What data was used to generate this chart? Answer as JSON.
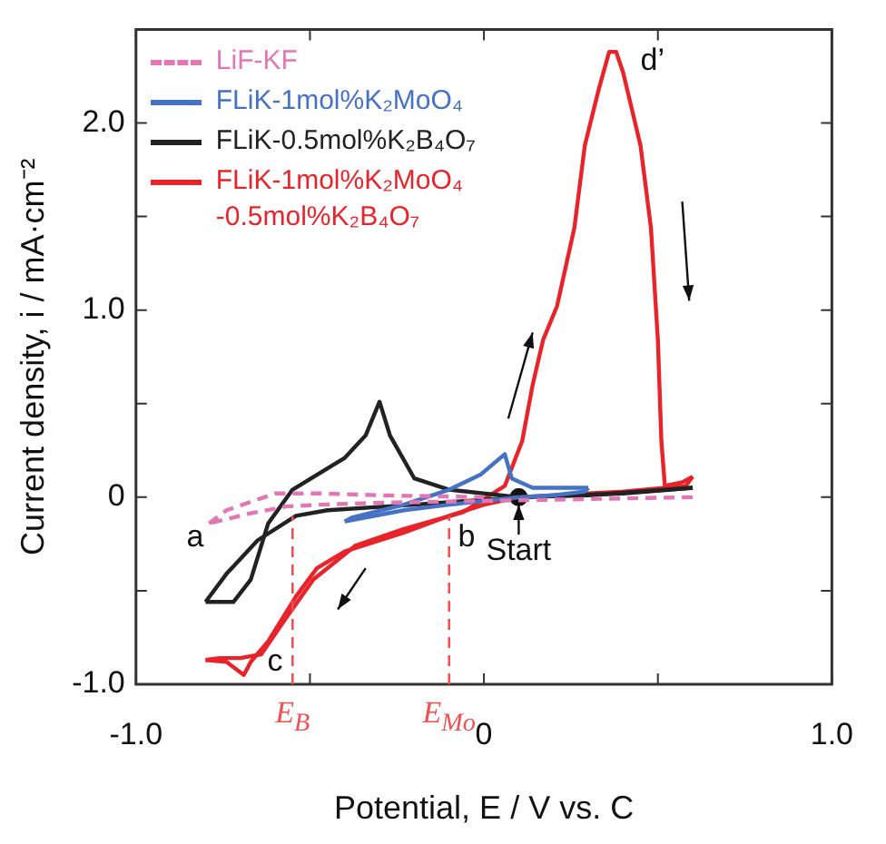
{
  "chart_data": {
    "type": "line",
    "xlabel": "Potential, E / V vs. C",
    "ylabel": "Current density, i / mA·cm⁻²",
    "xlim": [
      -1,
      1
    ],
    "xticks": [
      {
        "value": -1,
        "label": "-1.0"
      },
      {
        "value": -0.5,
        "label": null
      },
      {
        "value": 0,
        "label": "0"
      },
      {
        "value": 0.5,
        "label": null
      },
      {
        "value": 1,
        "label": "1.0"
      }
    ],
    "ylim": [
      -1,
      2.5
    ],
    "yticks": [
      {
        "value": -1,
        "label": "-1.0"
      },
      {
        "value": -0.5,
        "label": null
      },
      {
        "value": 0,
        "label": "0"
      },
      {
        "value": 0.5,
        "label": null
      },
      {
        "value": 1,
        "label": "1.0"
      },
      {
        "value": 1.5,
        "label": null
      },
      {
        "value": 2,
        "label": "2.0"
      }
    ],
    "legend": "top left",
    "marker": "none",
    "series": [
      {
        "name": "LiF-KF",
        "color": "#e377b5",
        "line_style": "dashed",
        "x": [
          0.6,
          0.3,
          0.0,
          -0.3,
          -0.47,
          -0.57,
          -0.68,
          -0.79
        ],
        "values": [
          0.0,
          -0.01,
          -0.02,
          -0.03,
          -0.04,
          -0.05,
          -0.09,
          -0.14
        ]
      },
      {
        "color": "#e377b5",
        "line_style": "dashed",
        "x": [
          -0.79,
          -0.74,
          -0.6,
          -0.47,
          -0.3,
          0.0
        ],
        "values": [
          -0.14,
          -0.07,
          0.02,
          0.02,
          0.01,
          0.0
        ]
      },
      {
        "color": "#4472c4",
        "x": [
          0.1,
          0.0,
          -0.1,
          -0.23,
          -0.4
        ],
        "values": [
          0.0,
          -0.02,
          -0.04,
          -0.07,
          -0.13
        ]
      },
      {
        "name": "FLiK-1mol%K₂MoO₄",
        "color": "#4472c4",
        "x": [
          -0.4,
          -0.38,
          -0.23,
          -0.1,
          -0.01,
          0.06,
          0.08,
          0.14,
          0.3
        ],
        "values": [
          -0.13,
          -0.11,
          -0.04,
          0.04,
          0.12,
          0.23,
          0.1,
          0.05,
          0.05
        ]
      },
      {
        "color": "#4472c4",
        "x": [
          0.3,
          0.29,
          0.2,
          0.1
        ],
        "values": [
          0.05,
          0.03,
          0.01,
          0.0
        ]
      },
      {
        "color": "#222222",
        "x": [
          0.1,
          0.3,
          0.6
        ],
        "values": [
          0.0,
          0.01,
          0.05
        ]
      },
      {
        "name": "FLiK-0.5mol%K₂B₄O₇",
        "color": "#222222",
        "x": [
          0.6,
          0.4,
          0.1,
          -0.2,
          -0.45,
          -0.54,
          -0.65,
          -0.74,
          -0.8
        ],
        "values": [
          0.05,
          0.02,
          0.0,
          -0.04,
          -0.07,
          -0.1,
          -0.23,
          -0.41,
          -0.56
        ]
      },
      {
        "color": "#222222",
        "x": [
          -0.8,
          -0.72,
          -0.67,
          -0.62,
          -0.55,
          -0.4,
          -0.34,
          -0.3,
          -0.27,
          -0.2,
          -0.1,
          0.1
        ],
        "values": [
          -0.56,
          -0.56,
          -0.44,
          -0.14,
          0.04,
          0.21,
          0.33,
          0.51,
          0.33,
          0.1,
          0.04,
          0.0
        ]
      },
      {
        "color": "#e8242b",
        "x": [
          0.1,
          0.0,
          -0.1,
          -0.23,
          -0.4,
          -0.48,
          -0.54,
          -0.62,
          -0.67,
          -0.69,
          -0.74,
          -0.8
        ],
        "values": [
          0.0,
          -0.04,
          -0.1,
          -0.19,
          -0.29,
          -0.38,
          -0.53,
          -0.77,
          -0.88,
          -0.95,
          -0.88,
          -0.87
        ]
      },
      {
        "name": "FLiK-1mol%K₂MoO₄\n-0.5mol%K₂B₄O₇",
        "color": "#e8242b",
        "x": [
          -0.8,
          -0.76,
          -0.7,
          -0.64,
          -0.57,
          -0.49,
          -0.37,
          -0.23,
          -0.06,
          0.06,
          0.11,
          0.14,
          0.17,
          0.21,
          0.26,
          0.29,
          0.33,
          0.36,
          0.38,
          0.4,
          0.45,
          0.48,
          0.5,
          0.51,
          0.52,
          0.57,
          0.6
        ],
        "values": [
          -0.87,
          -0.86,
          -0.86,
          -0.84,
          -0.65,
          -0.44,
          -0.26,
          -0.17,
          -0.08,
          0.06,
          0.3,
          0.6,
          0.84,
          1.02,
          1.44,
          1.88,
          2.18,
          2.38,
          2.38,
          2.27,
          1.88,
          1.44,
          0.84,
          0.3,
          0.06,
          0.08,
          0.11
        ]
      },
      {
        "color": "#e8242b",
        "x": [
          0.6,
          0.58,
          0.4,
          0.2,
          0.1
        ],
        "values": [
          0.11,
          0.06,
          0.03,
          0.01,
          0.0
        ]
      },
      {
        "type": "scatter",
        "marker": "circle",
        "color": "#111111",
        "x": [
          0.1
        ],
        "values": [
          0
        ]
      }
    ],
    "ref_lines": [
      {
        "axis": "x",
        "value": -0.55,
        "label": "E$_{B}$",
        "color": "#f05050",
        "line_style": "dashed"
      },
      {
        "axis": "x",
        "value": -0.1,
        "label": "E$_{Mo}$",
        "color": "#f05050",
        "line_style": "dashed"
      }
    ],
    "annotations": [
      "a",
      "b",
      "c",
      {
        "text": "d’",
        "x": 0.38,
        "y": 2.38
      },
      {
        "text": "Start",
        "x": 0.1,
        "y": 0
      }
    ]
  }
}
